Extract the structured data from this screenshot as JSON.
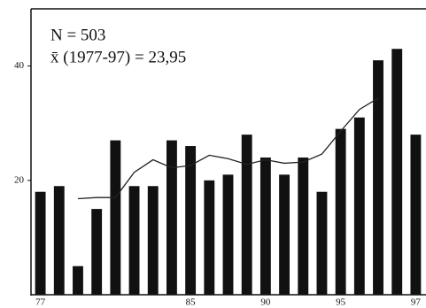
{
  "chart_data": {
    "type": "bar",
    "annotations": [
      "N = 503",
      "x̄ (1977-97) = 23,95"
    ],
    "categories": [
      "77",
      null,
      null,
      null,
      null,
      null,
      null,
      null,
      "85",
      null,
      null,
      null,
      "90",
      null,
      null,
      null,
      "95",
      null,
      null,
      null,
      "97"
    ],
    "values": [
      18,
      19,
      5,
      15,
      27,
      19,
      19,
      27,
      26,
      20,
      21,
      28,
      24,
      21,
      24,
      18,
      29,
      31,
      41,
      43,
      28
    ],
    "color": "#111111",
    "series": [
      {
        "type": "line",
        "color": "#222222",
        "values": [
          null,
          null,
          16.8,
          17,
          17,
          21.4,
          23.6,
          22.2,
          22.6,
          24.4,
          23.8,
          22.8,
          23.6,
          23,
          23.2,
          24.6,
          28.6,
          32.4,
          34.4,
          null,
          null
        ]
      }
    ],
    "ylim": [
      0,
      50
    ],
    "yticks": [
      20,
      40
    ]
  }
}
